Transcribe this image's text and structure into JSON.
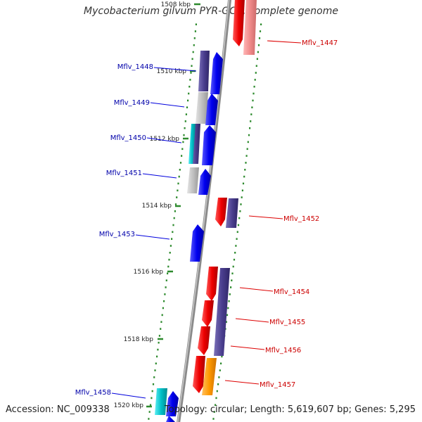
{
  "title": "Mycobacterium gilvum PYR-GCK, complete genome",
  "footer": {
    "accession": "Accession: NC_009338",
    "topology": "Topology: circular; Length: 5,619,607 bp; Genes: 5,295"
  },
  "colors": {
    "forward_cds": "#0000ee",
    "reverse_cds": "#ee0000",
    "gene_dark": "#4b3f8f",
    "gene_light": "#c0c0c0",
    "rna_cyan": "#00c0c8",
    "pink": "#f08a8a",
    "orange": "#ff9900",
    "tick_green": "#2d8a2d",
    "label_forward": "#0000aa",
    "label_reverse": "#cc0000"
  },
  "ticks": [
    {
      "label": "1508 kbp"
    },
    {
      "label": "1510 kbp"
    },
    {
      "label": "1512 kbp"
    },
    {
      "label": "1514 kbp"
    },
    {
      "label": "1516 kbp"
    },
    {
      "label": "1518 kbp"
    },
    {
      "label": "1520 kbp"
    }
  ],
  "genes_forward": [
    {
      "label": "Mflv_1448"
    },
    {
      "label": "Mflv_1449"
    },
    {
      "label": "Mflv_1450"
    },
    {
      "label": "Mflv_1451"
    },
    {
      "label": "Mflv_1453"
    },
    {
      "label": "Mflv_1458"
    }
  ],
  "genes_reverse": [
    {
      "label": "Mflv_1447"
    },
    {
      "label": "Mflv_1452"
    },
    {
      "label": "Mflv_1454"
    },
    {
      "label": "Mflv_1455"
    },
    {
      "label": "Mflv_1456"
    },
    {
      "label": "Mflv_1457"
    }
  ]
}
